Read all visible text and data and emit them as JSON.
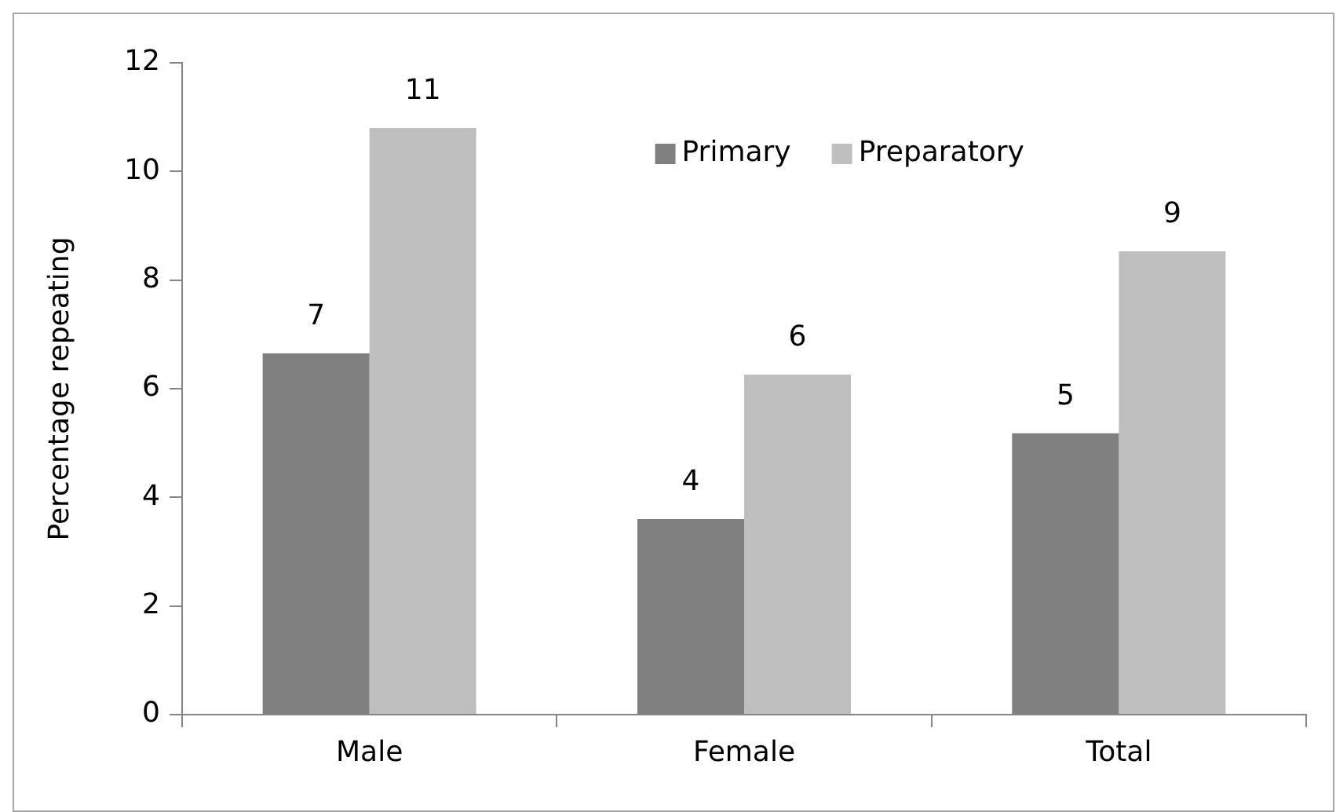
{
  "chart_data": {
    "type": "bar",
    "ylabel": "Percentage repeating",
    "categories": [
      "Male",
      "Female",
      "Total"
    ],
    "series": [
      {
        "name": "Primary",
        "color": "#808080",
        "values": [
          6.65,
          3.6,
          5.18
        ],
        "value_labels": [
          "7",
          "4",
          "5"
        ]
      },
      {
        "name": "Preparatory",
        "color": "#bfbfbf",
        "values": [
          10.8,
          6.26,
          8.53
        ],
        "value_labels": [
          "11",
          "6",
          "9"
        ]
      }
    ],
    "ylim": [
      0,
      12
    ],
    "yticks": [
      0,
      2,
      4,
      6,
      8,
      10,
      12
    ],
    "grid": false,
    "legend": "top"
  }
}
